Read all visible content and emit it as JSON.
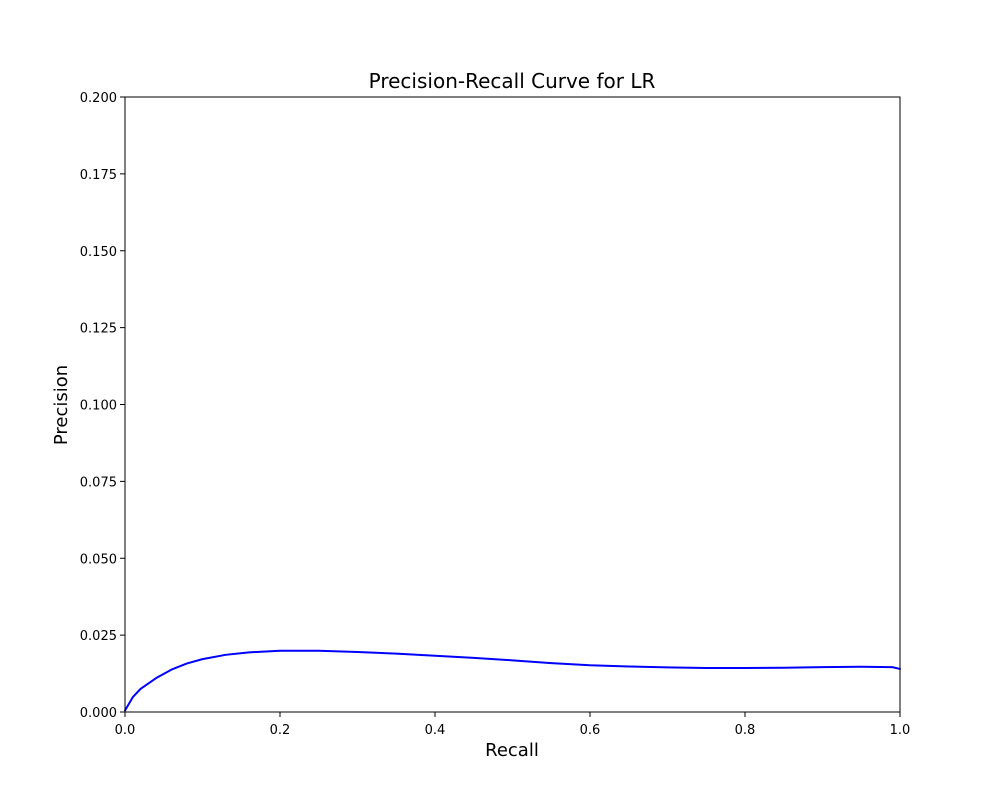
{
  "chart_data": {
    "type": "line",
    "title": "Precision-Recall Curve for LR",
    "xlabel": "Recall",
    "ylabel": "Precision",
    "xlim": [
      0.0,
      1.0
    ],
    "ylim": [
      0.0,
      0.2
    ],
    "x_ticks": [
      "0.0",
      "0.2",
      "0.4",
      "0.6",
      "0.8",
      "1.0"
    ],
    "y_ticks": [
      "0.000",
      "0.025",
      "0.050",
      "0.075",
      "0.100",
      "0.125",
      "0.150",
      "0.175",
      "0.200"
    ],
    "grid": false,
    "series": [
      {
        "color": "#0000ff",
        "x": [
          0.0,
          0.01,
          0.02,
          0.04,
          0.06,
          0.08,
          0.1,
          0.13,
          0.16,
          0.2,
          0.25,
          0.3,
          0.35,
          0.4,
          0.45,
          0.5,
          0.55,
          0.6,
          0.65,
          0.7,
          0.75,
          0.8,
          0.85,
          0.9,
          0.95,
          0.99,
          1.0
        ],
        "y": [
          0.0005,
          0.0048,
          0.0075,
          0.011,
          0.0138,
          0.0158,
          0.0172,
          0.0186,
          0.0194,
          0.0199,
          0.0199,
          0.0195,
          0.019,
          0.0183,
          0.0176,
          0.0168,
          0.0159,
          0.0152,
          0.0148,
          0.0145,
          0.0143,
          0.0143,
          0.0144,
          0.0146,
          0.0147,
          0.0146,
          0.014
        ]
      }
    ]
  }
}
